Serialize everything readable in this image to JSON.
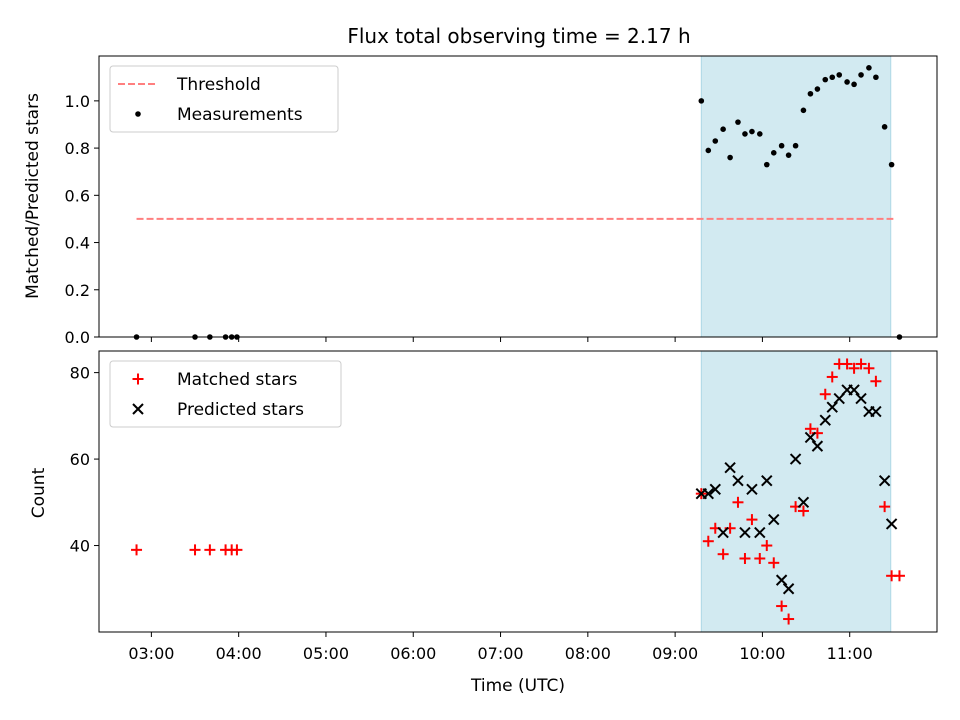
{
  "chart_data": [
    {
      "type": "scatter",
      "title": "Flux total observing time = 2.17 h",
      "xlabel": "",
      "ylabel": "Matched/Predicted stars",
      "xlim": [
        2.4,
        12.0
      ],
      "ylim": [
        0.0,
        1.19
      ],
      "yticks": [
        0.0,
        0.2,
        0.4,
        0.6,
        0.8,
        1.0
      ],
      "ytick_labels": [
        "0.0",
        "0.2",
        "0.4",
        "0.6",
        "0.8",
        "1.0"
      ],
      "shaded_span": [
        9.3,
        11.47
      ],
      "shade_color": "#add8e6",
      "legend_position": "upper-left",
      "series": [
        {
          "name": "Threshold",
          "kind": "line",
          "color": "#ff7f7f",
          "x": [
            2.83,
            11.5
          ],
          "y": [
            0.5,
            0.5
          ]
        },
        {
          "name": "Measurements",
          "kind": "dots",
          "color": "#000000",
          "x": [
            2.83,
            3.5,
            3.67,
            3.85,
            3.92,
            3.98,
            9.3,
            9.38,
            9.46,
            9.55,
            9.63,
            9.72,
            9.8,
            9.88,
            9.97,
            10.05,
            10.13,
            10.22,
            10.3,
            10.38,
            10.47,
            10.55,
            10.63,
            10.72,
            10.8,
            10.88,
            10.97,
            11.05,
            11.13,
            11.22,
            11.3,
            11.4,
            11.48,
            11.57
          ],
          "y": [
            0.0,
            0.0,
            0.0,
            0.0,
            0.0,
            0.0,
            1.0,
            0.79,
            0.83,
            0.88,
            0.76,
            0.91,
            0.86,
            0.87,
            0.86,
            0.73,
            0.78,
            0.81,
            0.77,
            0.81,
            0.96,
            1.03,
            1.05,
            1.09,
            1.1,
            1.11,
            1.08,
            1.07,
            1.11,
            1.14,
            1.1,
            0.89,
            0.73,
            0.0
          ]
        }
      ]
    },
    {
      "type": "scatter",
      "title": "",
      "xlabel": "Time (UTC)",
      "ylabel": "Count",
      "xlim": [
        2.4,
        12.0
      ],
      "ylim": [
        20.0,
        85.0
      ],
      "yticks": [
        40,
        60,
        80
      ],
      "ytick_labels": [
        "40",
        "60",
        "80"
      ],
      "xticks": [
        3,
        4,
        5,
        6,
        7,
        8,
        9,
        10,
        11
      ],
      "xtick_labels": [
        "03:00",
        "04:00",
        "05:00",
        "06:00",
        "07:00",
        "08:00",
        "09:00",
        "10:00",
        "11:00"
      ],
      "shaded_span": [
        9.3,
        11.47
      ],
      "shade_color": "#add8e6",
      "legend_position": "upper-left",
      "series": [
        {
          "name": "Matched stars",
          "kind": "plus",
          "color": "#ff0000",
          "x": [
            2.83,
            3.5,
            3.67,
            3.85,
            3.92,
            3.98,
            9.3,
            9.38,
            9.46,
            9.55,
            9.63,
            9.72,
            9.8,
            9.88,
            9.97,
            10.05,
            10.13,
            10.22,
            10.3,
            10.38,
            10.47,
            10.55,
            10.63,
            10.72,
            10.8,
            10.88,
            10.97,
            11.05,
            11.13,
            11.22,
            11.3,
            11.4,
            11.48,
            11.57
          ],
          "y": [
            39,
            39,
            39,
            39,
            39,
            39,
            52,
            41,
            44,
            38,
            44,
            50,
            37,
            46,
            37,
            40,
            36,
            26,
            23,
            49,
            48,
            67,
            66,
            75,
            79,
            82,
            82,
            81,
            82,
            81,
            78,
            49,
            33,
            33
          ]
        },
        {
          "name": "Predicted stars",
          "kind": "cross",
          "color": "#000000",
          "x": [
            9.3,
            9.38,
            9.46,
            9.55,
            9.63,
            9.72,
            9.8,
            9.88,
            9.97,
            10.05,
            10.13,
            10.22,
            10.3,
            10.38,
            10.47,
            10.55,
            10.63,
            10.72,
            10.8,
            10.88,
            10.97,
            11.05,
            11.13,
            11.22,
            11.3,
            11.4,
            11.48
          ],
          "y": [
            52,
            52,
            53,
            43,
            58,
            55,
            43,
            53,
            43,
            55,
            46,
            32,
            30,
            60,
            50,
            65,
            63,
            69,
            72,
            74,
            76,
            76,
            74,
            71,
            71,
            55,
            45
          ]
        }
      ]
    }
  ]
}
